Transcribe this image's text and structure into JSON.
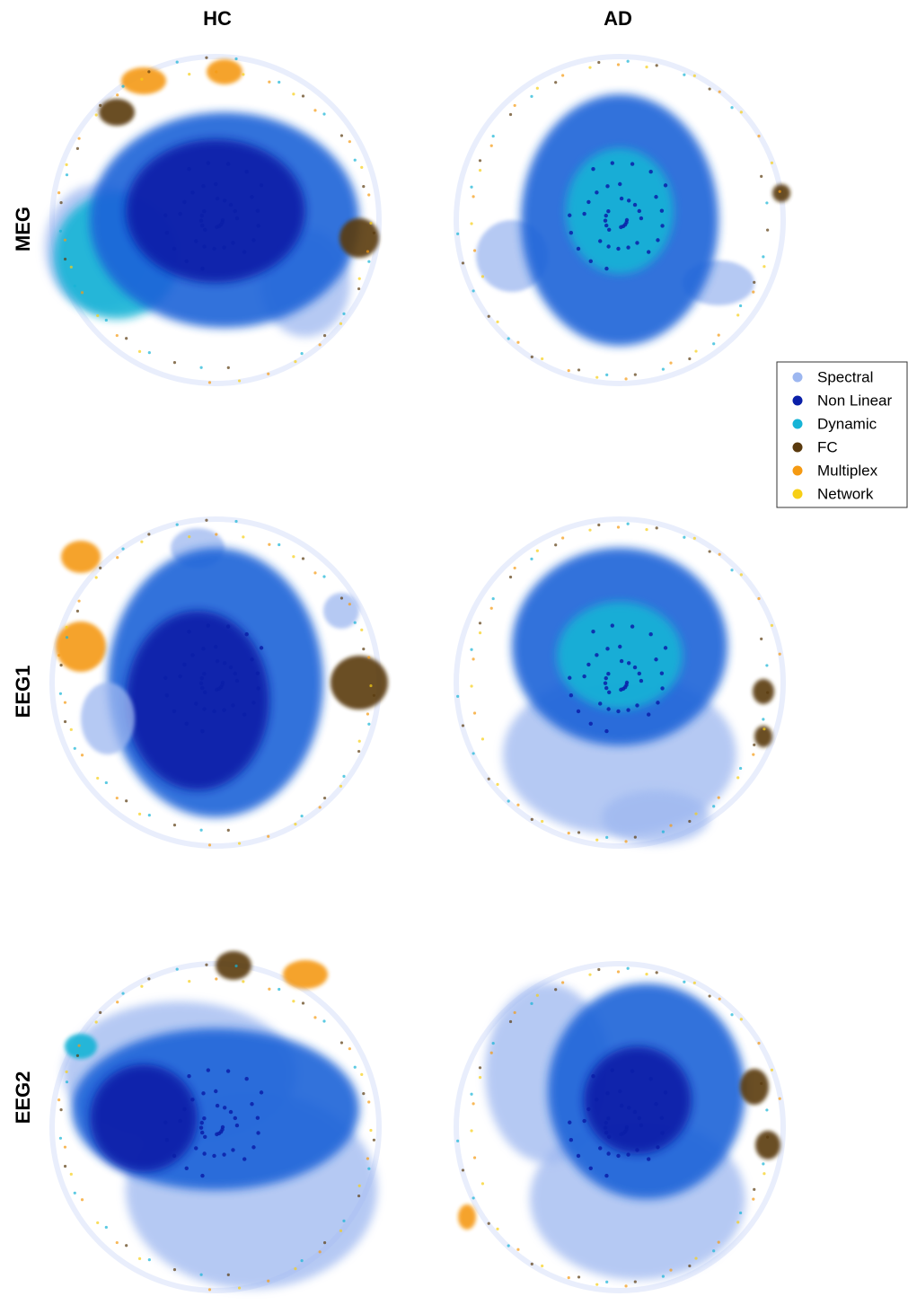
{
  "columns": [
    "HC",
    "AD"
  ],
  "rows": [
    "MEG",
    "EEG1",
    "EEG2"
  ],
  "legend": [
    {
      "label": "Spectral",
      "color": "#9db7f0"
    },
    {
      "label": "Non Linear",
      "color": "#0a1fa8"
    },
    {
      "label": "Dynamic",
      "color": "#17b4d6"
    },
    {
      "label": "FC",
      "color": "#5a3a0e"
    },
    {
      "label": "Multiplex",
      "color": "#f59a12"
    },
    {
      "label": "Network",
      "color": "#f7cf16"
    }
  ]
}
